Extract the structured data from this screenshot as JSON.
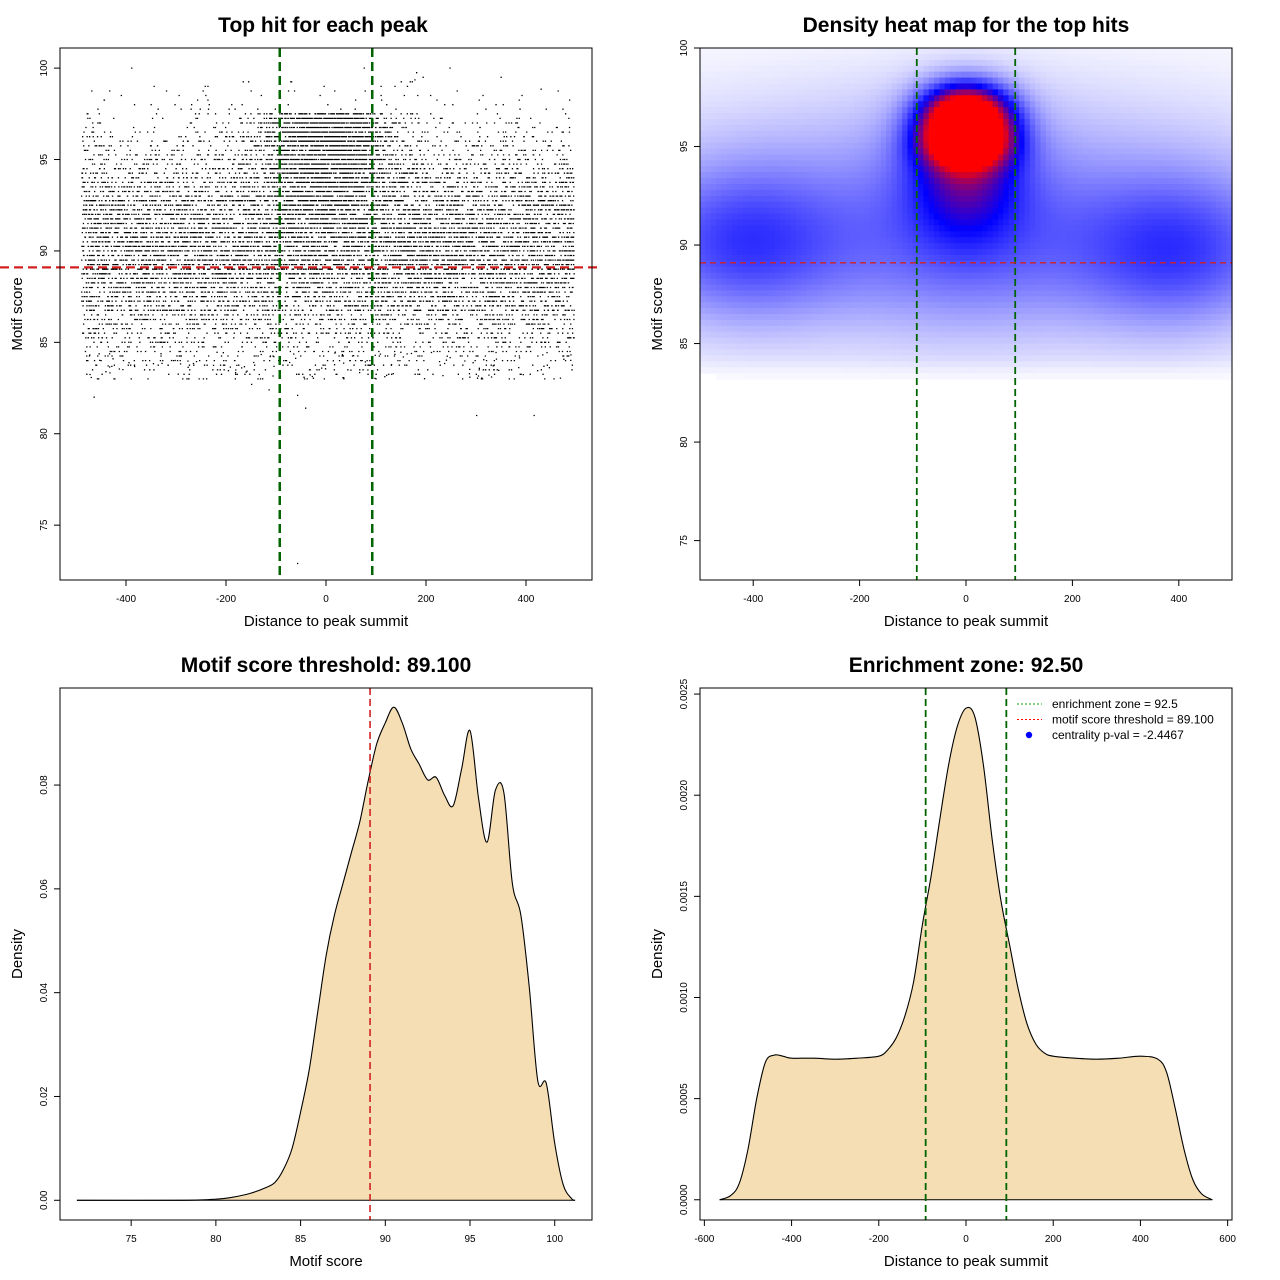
{
  "chart_data": [
    {
      "id": "scatter",
      "type": "scatter",
      "title": "Top hit for each peak",
      "xlabel": "Distance to peak summit",
      "ylabel": "Motif score",
      "xlim": [
        -532,
        532
      ],
      "ylim": [
        72.0,
        101.1
      ],
      "xticks": [
        -400,
        -200,
        0,
        200,
        400
      ],
      "yticks": [
        75,
        80,
        85,
        90,
        95,
        100
      ],
      "vlines": [
        -92.5,
        92.5
      ],
      "hline": 89.1,
      "n_points": 14000,
      "x_range": [
        -490,
        495
      ],
      "score_peaks": [
        96.6,
        95.0
      ],
      "outliers": [
        [
          -465,
          82.0
        ],
        [
          -150,
          82.7
        ],
        [
          -42,
          81.4
        ],
        [
          -58,
          82.1
        ],
        [
          -115,
          82.4
        ],
        [
          300,
          81.0
        ],
        [
          415,
          81.0
        ],
        [
          -58,
          72.9
        ]
      ]
    },
    {
      "id": "heatmap",
      "type": "heatmap",
      "title": "Density heat map for the top hits",
      "xlabel": "Distance to peak summit",
      "ylabel": "Motif score",
      "xlim": [
        -500,
        500
      ],
      "ylim": [
        73.0,
        100.0
      ],
      "xticks": [
        -400,
        -200,
        0,
        200,
        400
      ],
      "yticks": [
        75,
        80,
        85,
        90,
        95,
        100
      ],
      "vlines": [
        -92.5,
        92.5
      ],
      "hline": 89.1,
      "hotspots": [
        {
          "x": 0,
          "y": 96.7,
          "sx": 55,
          "sy": 1.0,
          "w": 1.0
        },
        {
          "x": 0,
          "y": 95.2,
          "sx": 55,
          "sy": 0.9,
          "w": 0.9
        },
        {
          "x": 0,
          "y": 94.0,
          "sx": 70,
          "sy": 2.3,
          "w": 0.45
        },
        {
          "x": 0,
          "y": 91.0,
          "sx": 160,
          "sy": 3.5,
          "w": 0.2
        },
        {
          "x": -420,
          "y": 90.2,
          "sx": 140,
          "sy": 2.8,
          "w": 0.32
        },
        {
          "x": 400,
          "y": 89.8,
          "sx": 140,
          "sy": 2.8,
          "w": 0.32
        },
        {
          "x": 0,
          "y": 89.5,
          "sx": 500,
          "sy": 3.5,
          "w": 0.16
        },
        {
          "x": 0,
          "y": 95.5,
          "sx": 500,
          "sy": 3.0,
          "w": 0.09
        }
      ]
    },
    {
      "id": "score-density",
      "type": "area",
      "title": "Motif score threshold: 89.100",
      "xlabel": "Motif score",
      "ylabel": "Density",
      "xlim": [
        70.8,
        102.2
      ],
      "ylim": [
        -0.0038,
        0.0987
      ],
      "xticks": [
        75,
        80,
        85,
        90,
        95,
        100
      ],
      "yticks": [
        0.0,
        0.02,
        0.04,
        0.06,
        0.08
      ],
      "ytick_labels": [
        "0.00",
        "0.02",
        "0.04",
        "0.06",
        "0.08"
      ],
      "vline": 89.1,
      "x": [
        71.8,
        78,
        80,
        81,
        82,
        83,
        83.5,
        84,
        84.5,
        85,
        85.5,
        86,
        86.5,
        87,
        87.5,
        88,
        88.5,
        89,
        89.5,
        90,
        90.5,
        91,
        91.5,
        92,
        92.5,
        93,
        93.5,
        94,
        94.5,
        95,
        95.5,
        96,
        96.5,
        97,
        97.5,
        98,
        98.5,
        99,
        99.5,
        100,
        100.5,
        101,
        101.2
      ],
      "y": [
        0.0,
        0.0,
        0.0002,
        0.0006,
        0.0013,
        0.0025,
        0.0035,
        0.006,
        0.01,
        0.017,
        0.025,
        0.036,
        0.047,
        0.055,
        0.061,
        0.067,
        0.073,
        0.081,
        0.088,
        0.092,
        0.095,
        0.092,
        0.087,
        0.084,
        0.081,
        0.0815,
        0.078,
        0.076,
        0.083,
        0.0905,
        0.0775,
        0.069,
        0.079,
        0.0785,
        0.061,
        0.055,
        0.041,
        0.023,
        0.0225,
        0.011,
        0.003,
        0.0003,
        0.0
      ]
    },
    {
      "id": "distance-density",
      "type": "area",
      "title": "Enrichment zone: 92.50",
      "xlabel": "Distance to peak summit",
      "ylabel": "Density",
      "xlim": [
        -610,
        610
      ],
      "ylim": [
        -0.0001,
        0.00253
      ],
      "xticks": [
        -600,
        -400,
        -200,
        0,
        200,
        400,
        600
      ],
      "yticks": [
        0.0,
        0.0005,
        0.001,
        0.0015,
        0.002,
        0.0025
      ],
      "ytick_labels": [
        "0.0000",
        "0.0005",
        "0.0010",
        "0.0015",
        "0.0020",
        "0.0025"
      ],
      "vlines": [
        -92.5,
        92.5
      ],
      "x": [
        -565,
        -540,
        -520,
        -500,
        -480,
        -460,
        -440,
        -420,
        -400,
        -350,
        -300,
        -250,
        -200,
        -180,
        -160,
        -140,
        -120,
        -100,
        -80,
        -60,
        -40,
        -20,
        0,
        20,
        40,
        60,
        80,
        100,
        120,
        140,
        160,
        180,
        200,
        250,
        300,
        350,
        400,
        440,
        460,
        480,
        500,
        520,
        540,
        565
      ],
      "y": [
        0.0,
        2e-05,
        8e-05,
        0.00025,
        0.0005,
        0.00068,
        0.000715,
        0.00071,
        0.0007,
        0.0007,
        0.000695,
        0.0007,
        0.00071,
        0.00074,
        0.0008,
        0.00091,
        0.00108,
        0.00136,
        0.0016,
        0.00188,
        0.00215,
        0.00234,
        0.00243,
        0.00239,
        0.00215,
        0.00178,
        0.00148,
        0.00126,
        0.00104,
        0.00087,
        0.00077,
        0.000725,
        0.00071,
        0.0007,
        0.000695,
        0.0007,
        0.00071,
        0.000695,
        0.00063,
        0.00045,
        0.00025,
        0.0001,
        3e-05,
        0.0
      ],
      "legend": [
        {
          "label": "enrichment zone = 92.5",
          "color": "#00A000",
          "kind": "line"
        },
        {
          "label": "motif score threshold = 89.100",
          "color": "#FF0000",
          "kind": "line"
        },
        {
          "label": "centrality p-val = -2.4467",
          "color": "#0000FF",
          "kind": "point"
        }
      ]
    }
  ],
  "colors": {
    "green": "#006400",
    "red": "#D22020",
    "fill": "#F5DEB3",
    "point": "#000000"
  }
}
